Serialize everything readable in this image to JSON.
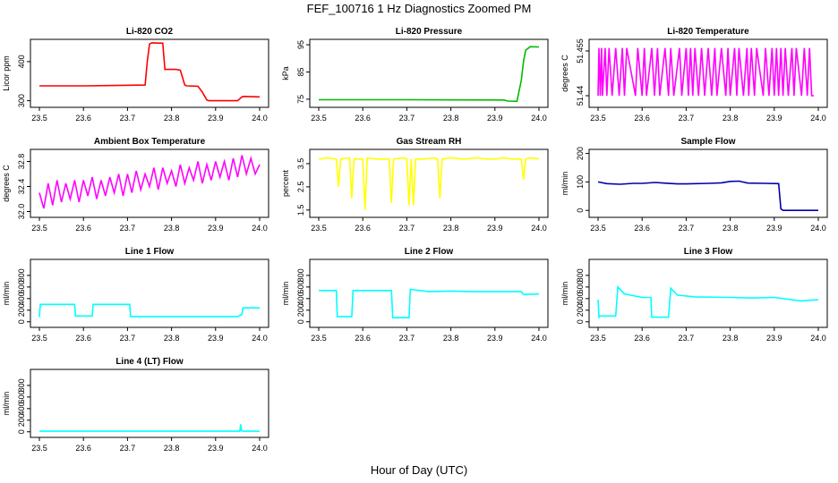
{
  "figure": {
    "title": "FEF_100716  1 Hz Diagnostics Zoomed PM",
    "xlabel": "Hour of Day (UTC)"
  },
  "chart_data": [
    {
      "type": "line",
      "title": "Li-820 CO2",
      "ylabel": "Licor ppm",
      "color": "#ff0000",
      "xlim": [
        23.5,
        24.0
      ],
      "ylim": [
        290,
        450
      ],
      "xticks": [
        "23.5",
        "23.6",
        "23.7",
        "23.8",
        "23.9",
        "24.0"
      ],
      "yticks": [
        300,
        400
      ],
      "x": [
        23.5,
        23.6,
        23.74,
        23.745,
        23.75,
        23.755,
        23.78,
        23.785,
        23.81,
        23.82,
        23.83,
        23.835,
        23.86,
        23.87,
        23.88,
        23.885,
        23.95,
        23.96,
        23.965,
        24.0
      ],
      "y": [
        338,
        338,
        340,
        400,
        445,
        448,
        447,
        380,
        380,
        378,
        340,
        338,
        337,
        322,
        302,
        300,
        300,
        310,
        311,
        310
      ]
    },
    {
      "type": "line",
      "title": "Li-820 Pressure",
      "ylabel": "kPa",
      "color": "#00bb00",
      "xlim": [
        23.5,
        24.0
      ],
      "ylim": [
        73,
        96
      ],
      "xticks": [
        "23.5",
        "23.6",
        "23.7",
        "23.8",
        "23.9",
        "24.0"
      ],
      "yticks": [
        75,
        85,
        95
      ],
      "x": [
        23.5,
        23.7,
        23.92,
        23.93,
        23.95,
        23.96,
        23.965,
        23.97,
        23.98,
        24.0
      ],
      "y": [
        74.8,
        74.8,
        74.7,
        74.3,
        74.2,
        82,
        89,
        93,
        94.3,
        94.2
      ]
    },
    {
      "type": "line",
      "title": "Li-820 Temperature",
      "ylabel": "degrees C",
      "color": "#ff00ff",
      "xlim": [
        23.5,
        24.0
      ],
      "ylim": [
        51.437,
        51.458
      ],
      "xticks": [
        "23.5",
        "23.6",
        "23.7",
        "23.8",
        "23.9",
        "24.0"
      ],
      "yticks": [
        51.44,
        51.455
      ],
      "x": [
        23.5,
        23.502,
        23.505,
        23.508,
        23.51,
        23.516,
        23.52,
        23.525,
        23.532,
        23.54,
        23.548,
        23.555,
        23.56,
        23.565,
        23.585,
        23.59,
        23.6,
        23.605,
        23.61,
        23.622,
        23.628,
        23.635,
        23.64,
        23.652,
        23.66,
        23.665,
        23.672,
        23.685,
        23.69,
        23.7,
        23.705,
        23.71,
        23.715,
        23.72,
        23.728,
        23.735,
        23.742,
        23.75,
        23.758,
        23.765,
        23.77,
        23.78,
        23.79,
        23.795,
        23.8,
        23.81,
        23.815,
        23.82,
        23.83,
        23.838,
        23.842,
        23.848,
        23.855,
        23.86,
        23.875,
        23.88,
        23.888,
        23.895,
        23.9,
        23.905,
        23.91,
        23.915,
        23.92,
        23.925,
        23.932,
        23.94,
        23.945,
        23.95,
        23.962,
        23.968,
        23.975,
        23.98,
        23.985,
        23.99
      ],
      "y": [
        51.44,
        51.456,
        51.44,
        51.456,
        51.44,
        51.456,
        51.44,
        51.456,
        51.44,
        51.456,
        51.44,
        51.456,
        51.44,
        51.456,
        51.44,
        51.456,
        51.44,
        51.456,
        51.44,
        51.456,
        51.44,
        51.456,
        51.44,
        51.456,
        51.44,
        51.456,
        51.44,
        51.456,
        51.44,
        51.456,
        51.44,
        51.456,
        51.44,
        51.456,
        51.44,
        51.456,
        51.44,
        51.456,
        51.44,
        51.456,
        51.44,
        51.456,
        51.44,
        51.456,
        51.44,
        51.456,
        51.44,
        51.456,
        51.44,
        51.456,
        51.44,
        51.456,
        51.44,
        51.456,
        51.44,
        51.456,
        51.44,
        51.456,
        51.44,
        51.456,
        51.44,
        51.456,
        51.44,
        51.456,
        51.44,
        51.456,
        51.44,
        51.456,
        51.44,
        51.456,
        51.44,
        51.456,
        51.44,
        51.44
      ]
    },
    {
      "type": "line",
      "title": "Ambient Box Temperature",
      "ylabel": "degrees C",
      "color": "#ff00ff",
      "xlim": [
        23.5,
        24.0
      ],
      "ylim": [
        31.95,
        32.95
      ],
      "xticks": [
        "23.5",
        "23.6",
        "23.7",
        "23.8",
        "23.9",
        "24.0"
      ],
      "yticks": [
        32.0,
        32.4,
        32.8
      ],
      "yticklabels": [
        "32.0",
        "32.4",
        "32.8"
      ],
      "x": [
        23.5,
        23.51,
        23.52,
        23.53,
        23.54,
        23.55,
        23.56,
        23.57,
        23.58,
        23.59,
        23.6,
        23.61,
        23.62,
        23.63,
        23.64,
        23.65,
        23.66,
        23.67,
        23.68,
        23.69,
        23.7,
        23.71,
        23.72,
        23.73,
        23.74,
        23.75,
        23.76,
        23.77,
        23.78,
        23.79,
        23.8,
        23.81,
        23.82,
        23.83,
        23.84,
        23.85,
        23.86,
        23.87,
        23.88,
        23.89,
        23.9,
        23.91,
        23.92,
        23.93,
        23.94,
        23.95,
        23.96,
        23.97,
        23.98,
        23.99,
        24.0
      ],
      "y": [
        32.3,
        32.05,
        32.45,
        32.1,
        32.5,
        32.15,
        32.45,
        32.2,
        32.5,
        32.15,
        32.5,
        32.25,
        32.55,
        32.2,
        32.5,
        32.25,
        32.55,
        32.3,
        32.6,
        32.25,
        32.6,
        32.3,
        32.65,
        32.35,
        32.6,
        32.4,
        32.7,
        32.35,
        32.7,
        32.45,
        32.65,
        32.4,
        32.75,
        32.45,
        32.7,
        32.5,
        32.8,
        32.45,
        32.75,
        32.5,
        32.8,
        32.55,
        32.8,
        32.5,
        32.85,
        32.55,
        32.9,
        32.6,
        32.85,
        32.6,
        32.75
      ]
    },
    {
      "type": "line",
      "title": "Gas Stream RH",
      "ylabel": "percent",
      "color": "#ffff00",
      "xlim": [
        23.5,
        24.0
      ],
      "ylim": [
        1.3,
        4.0
      ],
      "xticks": [
        "23.5",
        "23.6",
        "23.7",
        "23.8",
        "23.9",
        "24.0"
      ],
      "yticks": [
        1.5,
        2.5,
        3.5
      ],
      "yticklabels": [
        "1.5",
        "2.5",
        "3.5"
      ],
      "x": [
        23.5,
        23.52,
        23.54,
        23.545,
        23.55,
        23.57,
        23.575,
        23.58,
        23.6,
        23.605,
        23.61,
        23.63,
        23.66,
        23.665,
        23.67,
        23.69,
        23.7,
        23.705,
        23.71,
        23.715,
        23.72,
        23.74,
        23.76,
        23.77,
        23.775,
        23.78,
        23.8,
        23.83,
        23.86,
        23.88,
        23.9,
        23.92,
        23.94,
        23.96,
        23.965,
        23.97,
        23.98,
        24.0
      ],
      "y": [
        3.7,
        3.75,
        3.7,
        2.5,
        3.7,
        3.75,
        2.0,
        3.7,
        3.7,
        1.5,
        3.75,
        3.7,
        3.7,
        1.8,
        3.7,
        3.75,
        3.7,
        1.7,
        3.7,
        1.7,
        3.7,
        3.7,
        3.75,
        3.7,
        2.0,
        3.7,
        3.75,
        3.7,
        3.75,
        3.7,
        3.7,
        3.75,
        3.7,
        3.7,
        2.8,
        3.7,
        3.75,
        3.7
      ]
    },
    {
      "type": "line",
      "title": "Sample Flow",
      "ylabel": "ml/min",
      "color": "#0000aa",
      "xlim": [
        23.5,
        24.0
      ],
      "ylim": [
        -15,
        205
      ],
      "xticks": [
        "23.5",
        "23.6",
        "23.7",
        "23.8",
        "23.9",
        "24.0"
      ],
      "yticks": [
        0,
        100,
        200
      ],
      "x": [
        23.5,
        23.52,
        23.55,
        23.58,
        23.6,
        23.63,
        23.65,
        23.68,
        23.7,
        23.75,
        23.78,
        23.8,
        23.82,
        23.84,
        23.88,
        23.91,
        23.915,
        23.92,
        23.95,
        24.0
      ],
      "y": [
        100,
        94,
        92,
        95,
        95,
        98,
        96,
        93,
        93,
        95,
        97,
        102,
        103,
        96,
        95,
        94,
        5,
        0,
        0,
        0
      ]
    },
    {
      "type": "line",
      "title": "Line 1 Flow",
      "ylabel": "ml/min",
      "color": "#00ffff",
      "xlim": [
        23.5,
        24.0
      ],
      "ylim": [
        -50,
        1030
      ],
      "xticks": [
        "23.5",
        "23.6",
        "23.7",
        "23.8",
        "23.9",
        "24.0"
      ],
      "yticks": [
        0,
        200,
        400,
        600,
        800
      ],
      "x": [
        23.5,
        23.502,
        23.58,
        23.582,
        23.62,
        23.622,
        23.705,
        23.707,
        23.95,
        23.96,
        23.962,
        24.0
      ],
      "y": [
        80,
        300,
        300,
        100,
        100,
        300,
        300,
        90,
        90,
        130,
        240,
        240
      ]
    },
    {
      "type": "line",
      "title": "Line 2 Flow",
      "ylabel": "ml/min",
      "color": "#00ffff",
      "xlim": [
        23.5,
        24.0
      ],
      "ylim": [
        -50,
        1030
      ],
      "xticks": [
        "23.5",
        "23.6",
        "23.7",
        "23.8",
        "23.9",
        "24.0"
      ],
      "yticks": [
        0,
        200,
        400,
        600,
        800
      ],
      "x": [
        23.5,
        23.54,
        23.542,
        23.575,
        23.578,
        23.665,
        23.668,
        23.705,
        23.708,
        23.75,
        23.8,
        23.85,
        23.9,
        23.96,
        23.965,
        24.0
      ],
      "y": [
        540,
        540,
        90,
        90,
        540,
        540,
        70,
        70,
        560,
        520,
        530,
        520,
        520,
        520,
        470,
        480
      ]
    },
    {
      "type": "line",
      "title": "Line 3 Flow",
      "ylabel": "ml/min",
      "color": "#00ffff",
      "xlim": [
        23.5,
        24.0
      ],
      "ylim": [
        -50,
        1030
      ],
      "xticks": [
        "23.5",
        "23.6",
        "23.7",
        "23.8",
        "23.9",
        "24.0"
      ],
      "yticks": [
        0,
        200,
        400,
        600,
        800
      ],
      "x": [
        23.5,
        23.502,
        23.504,
        23.54,
        23.545,
        23.56,
        23.6,
        23.62,
        23.622,
        23.66,
        23.665,
        23.68,
        23.72,
        23.8,
        23.85,
        23.9,
        23.96,
        24.0
      ],
      "y": [
        380,
        80,
        100,
        100,
        600,
        480,
        420,
        420,
        80,
        80,
        580,
        460,
        430,
        420,
        410,
        420,
        360,
        380
      ]
    },
    {
      "type": "line",
      "title": "Line 4 (LT) Flow",
      "ylabel": "ml/min",
      "color": "#00ffff",
      "xlim": [
        23.5,
        24.0
      ],
      "ylim": [
        -50,
        1030
      ],
      "xticks": [
        "23.5",
        "23.6",
        "23.7",
        "23.8",
        "23.9",
        "24.0"
      ],
      "yticks": [
        0,
        200,
        400,
        600,
        800
      ],
      "x": [
        23.5,
        23.6,
        23.7,
        23.8,
        23.9,
        23.955,
        23.957,
        23.959,
        23.962,
        24.0
      ],
      "y": [
        10,
        10,
        10,
        10,
        10,
        10,
        130,
        20,
        10,
        10
      ]
    }
  ]
}
